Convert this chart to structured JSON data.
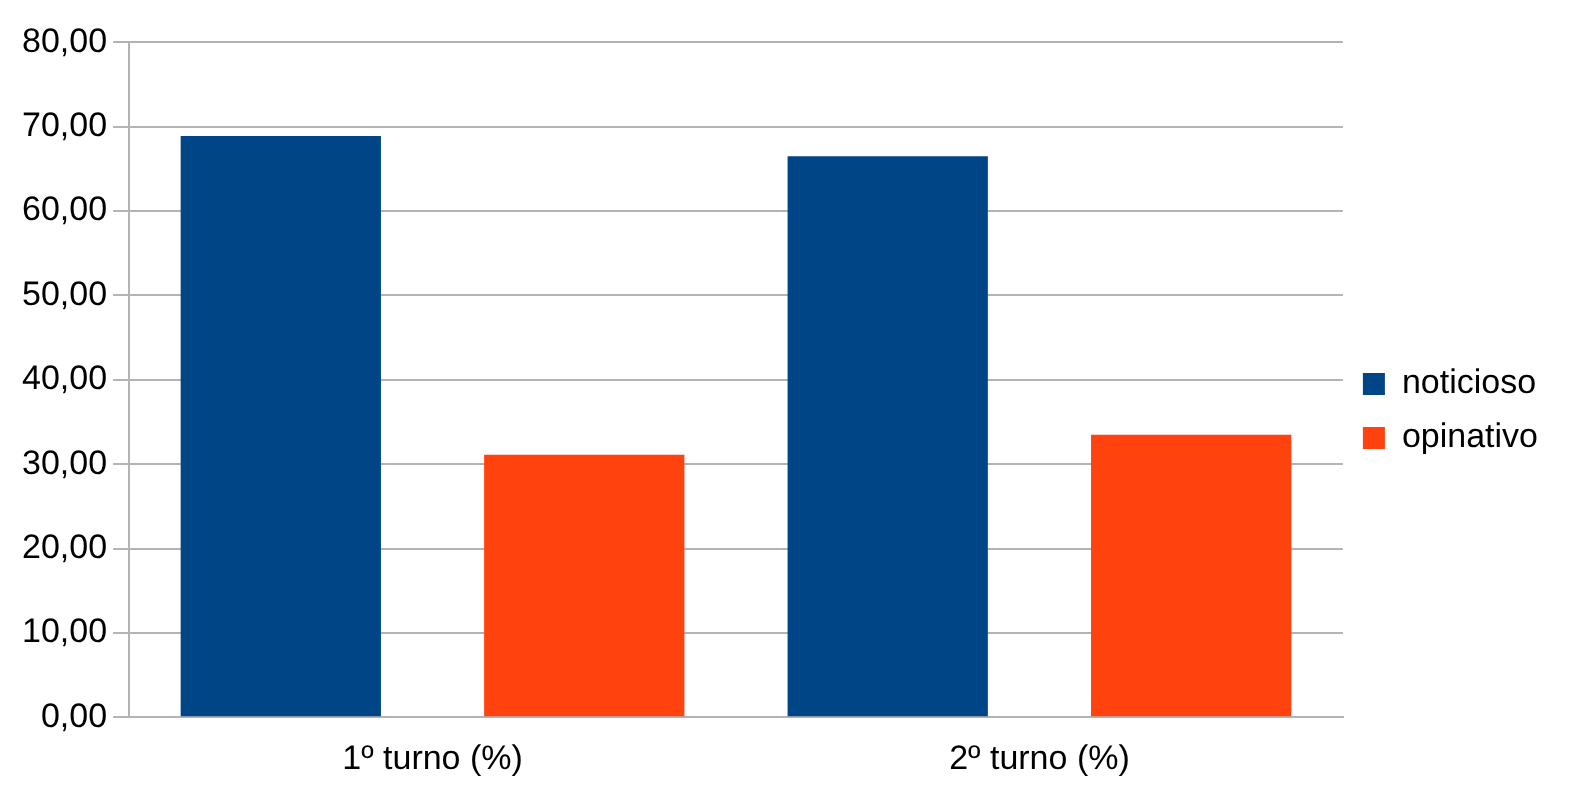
{
  "chart_data": {
    "type": "bar",
    "categories": [
      "1º turno (%)",
      "2º turno (%)"
    ],
    "series": [
      {
        "name": "noticioso",
        "color": "#004586",
        "values": [
          68.9,
          66.5
        ]
      },
      {
        "name": "opinativo",
        "color": "#ff420e",
        "values": [
          31.1,
          33.5
        ]
      }
    ],
    "ylim": [
      0,
      80
    ],
    "yticks": [
      {
        "value": 0,
        "label": "0,00"
      },
      {
        "value": 10,
        "label": "10,00"
      },
      {
        "value": 20,
        "label": "20,00"
      },
      {
        "value": 30,
        "label": "30,00"
      },
      {
        "value": 40,
        "label": "40,00"
      },
      {
        "value": 50,
        "label": "50,00"
      },
      {
        "value": 60,
        "label": "60,00"
      },
      {
        "value": 70,
        "label": "70,00"
      },
      {
        "value": 80,
        "label": "80,00"
      }
    ],
    "grid": "y",
    "legend": "right"
  }
}
